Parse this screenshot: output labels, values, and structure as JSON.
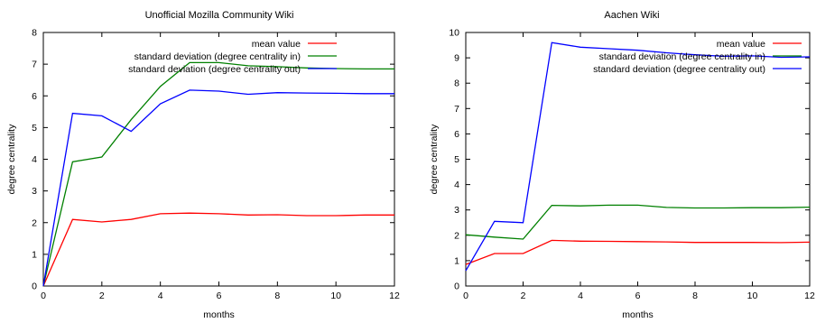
{
  "chart_data": [
    {
      "type": "line",
      "title": "Unofficial Mozilla Community Wiki",
      "xlabel": "months",
      "ylabel": "degree centrality",
      "xlim": [
        0,
        12
      ],
      "ylim": [
        0,
        8
      ],
      "xticks": [
        0,
        2,
        4,
        6,
        8,
        10,
        12
      ],
      "yticks": [
        0,
        1,
        2,
        3,
        4,
        5,
        6,
        7,
        8
      ],
      "legend": "top-right",
      "series": [
        {
          "name": "mean value",
          "color": "#ff0000",
          "x": [
            0,
            1,
            2,
            3,
            4,
            5,
            6,
            7,
            8,
            9,
            10,
            11,
            12
          ],
          "y": [
            0,
            2.1,
            2.02,
            2.1,
            2.28,
            2.3,
            2.28,
            2.24,
            2.25,
            2.22,
            2.22,
            2.24,
            2.24
          ]
        },
        {
          "name": "standard deviation (degree centrality in)",
          "color": "#008000",
          "x": [
            0,
            1,
            2,
            3,
            4,
            5,
            6,
            7,
            8,
            9,
            10,
            11,
            12
          ],
          "y": [
            0,
            3.92,
            4.07,
            5.25,
            6.3,
            7.05,
            7.05,
            6.95,
            6.92,
            6.88,
            6.86,
            6.85,
            6.85
          ]
        },
        {
          "name": "standard deviation (degree centrality out)",
          "color": "#0000ff",
          "x": [
            0,
            1,
            2,
            3,
            4,
            5,
            6,
            7,
            8,
            9,
            10,
            11,
            12
          ],
          "y": [
            0,
            5.45,
            5.37,
            4.88,
            5.75,
            6.18,
            6.15,
            6.05,
            6.1,
            6.09,
            6.08,
            6.07,
            6.07
          ]
        }
      ]
    },
    {
      "type": "line",
      "title": "Aachen Wiki",
      "xlabel": "months",
      "ylabel": "degree centrality",
      "xlim": [
        0,
        12
      ],
      "ylim": [
        0,
        10
      ],
      "xticks": [
        0,
        2,
        4,
        6,
        8,
        10,
        12
      ],
      "yticks": [
        0,
        1,
        2,
        3,
        4,
        5,
        6,
        7,
        8,
        9,
        10
      ],
      "legend": "top-right",
      "series": [
        {
          "name": "mean value",
          "color": "#ff0000",
          "x": [
            0,
            1,
            2,
            3,
            4,
            5,
            6,
            7,
            8,
            9,
            10,
            11,
            12
          ],
          "y": [
            0.85,
            1.28,
            1.28,
            1.8,
            1.77,
            1.76,
            1.75,
            1.74,
            1.72,
            1.72,
            1.72,
            1.71,
            1.73
          ]
        },
        {
          "name": "standard deviation (degree centrality in)",
          "color": "#008000",
          "x": [
            0,
            1,
            2,
            3,
            4,
            5,
            6,
            7,
            8,
            9,
            10,
            11,
            12
          ],
          "y": [
            2.02,
            1.93,
            1.85,
            3.18,
            3.16,
            3.19,
            3.19,
            3.1,
            3.08,
            3.08,
            3.09,
            3.09,
            3.11
          ]
        },
        {
          "name": "standard deviation (degree centrality out)",
          "color": "#0000ff",
          "x": [
            0,
            1,
            2,
            3,
            4,
            5,
            6,
            7,
            8,
            9,
            10,
            11,
            12
          ],
          "y": [
            0.6,
            2.55,
            2.5,
            9.6,
            9.42,
            9.36,
            9.3,
            9.2,
            9.12,
            9.06,
            9.08,
            9.02,
            9.04
          ]
        }
      ]
    }
  ]
}
